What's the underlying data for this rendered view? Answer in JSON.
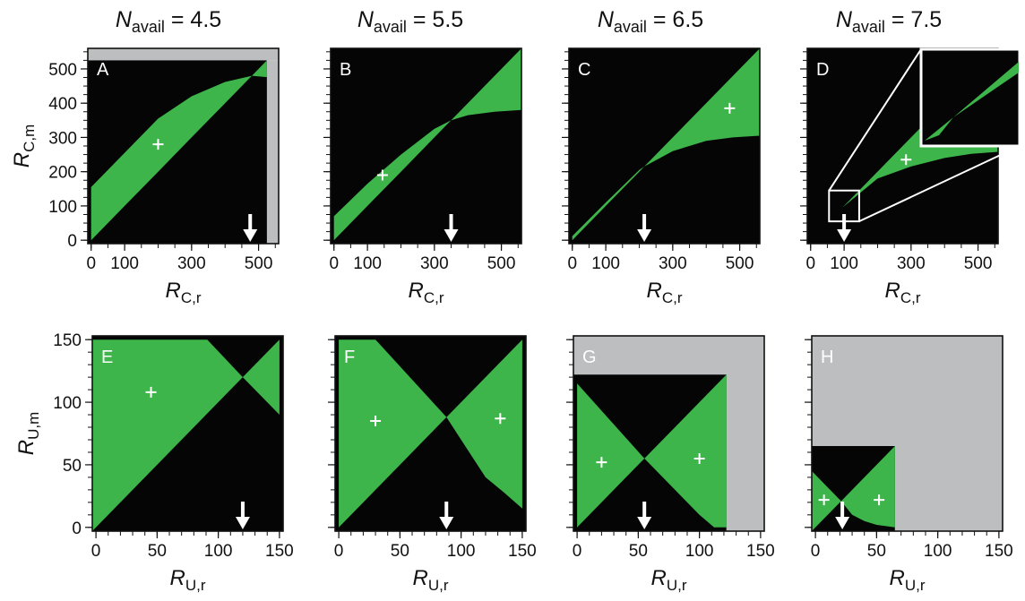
{
  "colors": {
    "region_black": "#050505",
    "region_green": "#3db54a",
    "region_gray": "#bcbebf",
    "marker": "#ffffff"
  },
  "column_titles": [
    {
      "var": "N",
      "sub": "avail",
      "text": " = 4.5"
    },
    {
      "var": "N",
      "sub": "avail",
      "text": " = 5.5"
    },
    {
      "var": "N",
      "sub": "avail",
      "text": " = 6.5"
    },
    {
      "var": "N",
      "sub": "avail",
      "text": " = 7.5"
    }
  ],
  "chart_data": [
    {
      "type": "heatmap",
      "panel": "A",
      "n_avail": 4.5,
      "xlabel": {
        "var": "R",
        "sub": "C,r"
      },
      "ylabel": {
        "var": "R",
        "sub": "C,m"
      },
      "xlim": [
        -10,
        560
      ],
      "ylim": [
        -10,
        560
      ],
      "xticks": [
        0,
        100,
        300,
        500
      ],
      "yticks": [
        0,
        100,
        200,
        300,
        400,
        500
      ],
      "regions": [
        {
          "fill": "gray",
          "points": [
            [
              -10,
              525
            ],
            [
              560,
              525
            ],
            [
              560,
              560
            ],
            [
              -10,
              560
            ]
          ]
        },
        {
          "fill": "gray",
          "points": [
            [
              525,
              -10
            ],
            [
              560,
              -10
            ],
            [
              560,
              525
            ],
            [
              525,
              525
            ]
          ]
        },
        {
          "fill": "black",
          "points": [
            [
              -10,
              -10
            ],
            [
              525,
              -10
            ],
            [
              525,
              525
            ],
            [
              -10,
              525
            ]
          ]
        },
        {
          "fill": "green",
          "points": [
            [
              0,
              0
            ],
            [
              0,
              155
            ],
            [
              100,
              255
            ],
            [
              200,
              355
            ],
            [
              300,
              420
            ],
            [
              400,
              462
            ],
            [
              480,
              480
            ],
            [
              525,
              525
            ],
            [
              525,
              476
            ],
            [
              480,
              480
            ],
            [
              400,
              400
            ],
            [
              300,
              300
            ],
            [
              200,
              200
            ],
            [
              100,
              100
            ]
          ]
        }
      ],
      "arrow_x": 475,
      "marker": [
        200,
        280
      ]
    },
    {
      "type": "heatmap",
      "panel": "B",
      "n_avail": 5.5,
      "xlabel": {
        "var": "R",
        "sub": "C,r"
      },
      "ylabel": {
        "var": "R",
        "sub": "C,m"
      },
      "xlim": [
        -10,
        560
      ],
      "ylim": [
        -10,
        560
      ],
      "xticks": [
        0,
        100,
        300,
        500
      ],
      "yticks": [
        0,
        100,
        200,
        300,
        400,
        500
      ],
      "regions": [
        {
          "fill": "black",
          "points": [
            [
              -10,
              -10
            ],
            [
              560,
              -10
            ],
            [
              560,
              560
            ],
            [
              -10,
              560
            ]
          ]
        },
        {
          "fill": "green",
          "points": [
            [
              0,
              0
            ],
            [
              0,
              70
            ],
            [
              100,
              165
            ],
            [
              200,
              250
            ],
            [
              300,
              325
            ],
            [
              350,
              350
            ],
            [
              300,
              300
            ],
            [
              200,
              200
            ],
            [
              100,
              100
            ]
          ]
        },
        {
          "fill": "green",
          "points": [
            [
              350,
              350
            ],
            [
              400,
              365
            ],
            [
              480,
              375
            ],
            [
              560,
              380
            ],
            [
              560,
              560
            ]
          ]
        }
      ],
      "arrow_x": 350,
      "marker": [
        145,
        190
      ]
    },
    {
      "type": "heatmap",
      "panel": "C",
      "n_avail": 6.5,
      "xlabel": {
        "var": "R",
        "sub": "C,r"
      },
      "ylabel": {
        "var": "R",
        "sub": "C,m"
      },
      "xlim": [
        -10,
        560
      ],
      "ylim": [
        -10,
        560
      ],
      "xticks": [
        0,
        100,
        300,
        500
      ],
      "yticks": [
        0,
        100,
        200,
        300,
        400,
        500
      ],
      "regions": [
        {
          "fill": "black",
          "points": [
            [
              -10,
              -10
            ],
            [
              560,
              -10
            ],
            [
              560,
              560
            ],
            [
              -10,
              560
            ]
          ]
        },
        {
          "fill": "green",
          "points": [
            [
              0,
              0
            ],
            [
              0,
              12
            ],
            [
              100,
              110
            ],
            [
              200,
              205
            ],
            [
              215,
              215
            ],
            [
              200,
              200
            ],
            [
              100,
              100
            ]
          ]
        },
        {
          "fill": "green",
          "points": [
            [
              215,
              215
            ],
            [
              300,
              260
            ],
            [
              400,
              290
            ],
            [
              480,
              300
            ],
            [
              560,
              305
            ],
            [
              560,
              560
            ]
          ]
        }
      ],
      "arrow_x": 215,
      "marker": [
        470,
        385
      ]
    },
    {
      "type": "heatmap",
      "panel": "D",
      "n_avail": 7.5,
      "xlabel": {
        "var": "R",
        "sub": "C,r"
      },
      "ylabel": {
        "var": "R",
        "sub": "C,m"
      },
      "xlim": [
        -10,
        560
      ],
      "ylim": [
        -10,
        560
      ],
      "xticks": [
        0,
        100,
        300,
        500
      ],
      "yticks": [
        0,
        100,
        200,
        300,
        400,
        500
      ],
      "regions": [
        {
          "fill": "black",
          "points": [
            [
              -10,
              -10
            ],
            [
              560,
              -10
            ],
            [
              560,
              560
            ],
            [
              -10,
              560
            ]
          ]
        },
        {
          "fill": "green",
          "points": [
            [
              95,
              95
            ],
            [
              200,
              180
            ],
            [
              300,
              215
            ],
            [
              400,
              240
            ],
            [
              480,
              252
            ],
            [
              560,
              258
            ],
            [
              560,
              560
            ]
          ]
        }
      ],
      "arrow_x": 100,
      "marker": [
        285,
        235
      ],
      "zoom_box": [
        55,
        55,
        145,
        145
      ]
    },
    {
      "type": "heatmap",
      "panel": "E",
      "n_avail": 4.5,
      "xlabel": {
        "var": "R",
        "sub": "U,r"
      },
      "ylabel": {
        "var": "R",
        "sub": "U,m"
      },
      "xlim": [
        -3,
        153
      ],
      "ylim": [
        -3,
        153
      ],
      "xticks": [
        0,
        50,
        100,
        150
      ],
      "yticks": [
        0,
        50,
        100,
        150
      ],
      "regions": [
        {
          "fill": "black",
          "points": [
            [
              -3,
              -3
            ],
            [
              153,
              -3
            ],
            [
              153,
              153
            ],
            [
              -3,
              153
            ]
          ]
        },
        {
          "fill": "green",
          "points": [
            [
              -3,
              -3
            ],
            [
              0,
              0
            ],
            [
              120,
              120
            ],
            [
              91,
              150
            ],
            [
              -3,
              150
            ]
          ]
        },
        {
          "fill": "green",
          "points": [
            [
              120,
              120
            ],
            [
              150,
              150
            ],
            [
              150,
              90
            ]
          ]
        }
      ],
      "arrow_x": 120,
      "marker": [
        45,
        108
      ]
    },
    {
      "type": "heatmap",
      "panel": "F",
      "n_avail": 5.5,
      "xlabel": {
        "var": "R",
        "sub": "U,r"
      },
      "ylabel": {
        "var": "R",
        "sub": "U,m"
      },
      "xlim": [
        -3,
        153
      ],
      "ylim": [
        -3,
        153
      ],
      "xticks": [
        0,
        50,
        100,
        150
      ],
      "yticks": [
        0,
        50,
        100,
        150
      ],
      "regions": [
        {
          "fill": "black",
          "points": [
            [
              -3,
              -3
            ],
            [
              153,
              -3
            ],
            [
              153,
              153
            ],
            [
              -3,
              153
            ]
          ]
        },
        {
          "fill": "green",
          "points": [
            [
              0,
              0
            ],
            [
              88,
              88
            ],
            [
              30,
              150
            ],
            [
              0,
              150
            ]
          ]
        },
        {
          "fill": "green",
          "points": [
            [
              88,
              88
            ],
            [
              150,
              150
            ],
            [
              150,
              15
            ],
            [
              135,
              28
            ],
            [
              120,
              40
            ]
          ]
        }
      ],
      "arrow_x": 88,
      "marker": [
        [
          30,
          85
        ],
        [
          132,
          87
        ]
      ]
    },
    {
      "type": "heatmap",
      "panel": "G",
      "n_avail": 6.5,
      "xlabel": {
        "var": "R",
        "sub": "U,r"
      },
      "ylabel": {
        "var": "R",
        "sub": "U,m"
      },
      "xlim": [
        -3,
        153
      ],
      "ylim": [
        -3,
        153
      ],
      "xticks": [
        0,
        50,
        100,
        150
      ],
      "yticks": [
        0,
        50,
        100,
        150
      ],
      "regions": [
        {
          "fill": "gray",
          "points": [
            [
              -3,
              -3
            ],
            [
              153,
              -3
            ],
            [
              153,
              153
            ],
            [
              -3,
              153
            ]
          ]
        },
        {
          "fill": "black",
          "points": [
            [
              -3,
              -3
            ],
            [
              122,
              -3
            ],
            [
              122,
              122
            ],
            [
              -3,
              122
            ]
          ]
        },
        {
          "fill": "green",
          "points": [
            [
              0,
              0
            ],
            [
              55,
              55
            ],
            [
              0,
              115
            ]
          ]
        },
        {
          "fill": "green",
          "points": [
            [
              55,
              55
            ],
            [
              122,
              122
            ],
            [
              122,
              0
            ],
            [
              112,
              0
            ],
            [
              100,
              10
            ],
            [
              85,
              25
            ],
            [
              70,
              40
            ]
          ]
        }
      ],
      "arrow_x": 55,
      "marker": [
        [
          20,
          52
        ],
        [
          100,
          55
        ]
      ]
    },
    {
      "type": "heatmap",
      "panel": "H",
      "n_avail": 7.5,
      "xlabel": {
        "var": "R",
        "sub": "U,r"
      },
      "ylabel": {
        "var": "R",
        "sub": "U,m"
      },
      "xlim": [
        -3,
        153
      ],
      "ylim": [
        -3,
        153
      ],
      "xticks": [
        0,
        50,
        100,
        150
      ],
      "yticks": [
        0,
        50,
        100,
        150
      ],
      "regions": [
        {
          "fill": "gray",
          "points": [
            [
              -3,
              -3
            ],
            [
              153,
              -3
            ],
            [
              153,
              153
            ],
            [
              -3,
              153
            ]
          ]
        },
        {
          "fill": "black",
          "points": [
            [
              -3,
              -3
            ],
            [
              65,
              -3
            ],
            [
              65,
              65
            ],
            [
              -3,
              65
            ]
          ]
        },
        {
          "fill": "green",
          "points": [
            [
              -3,
              -3
            ],
            [
              0,
              0
            ],
            [
              21,
              21
            ],
            [
              -3,
              45
            ]
          ]
        },
        {
          "fill": "green",
          "points": [
            [
              21,
              21
            ],
            [
              65,
              65
            ],
            [
              65,
              0
            ],
            [
              50,
              2
            ],
            [
              40,
              5
            ],
            [
              30,
              10
            ]
          ]
        }
      ],
      "arrow_x": 22,
      "marker": [
        [
          7,
          22
        ],
        [
          52,
          22
        ]
      ]
    }
  ]
}
